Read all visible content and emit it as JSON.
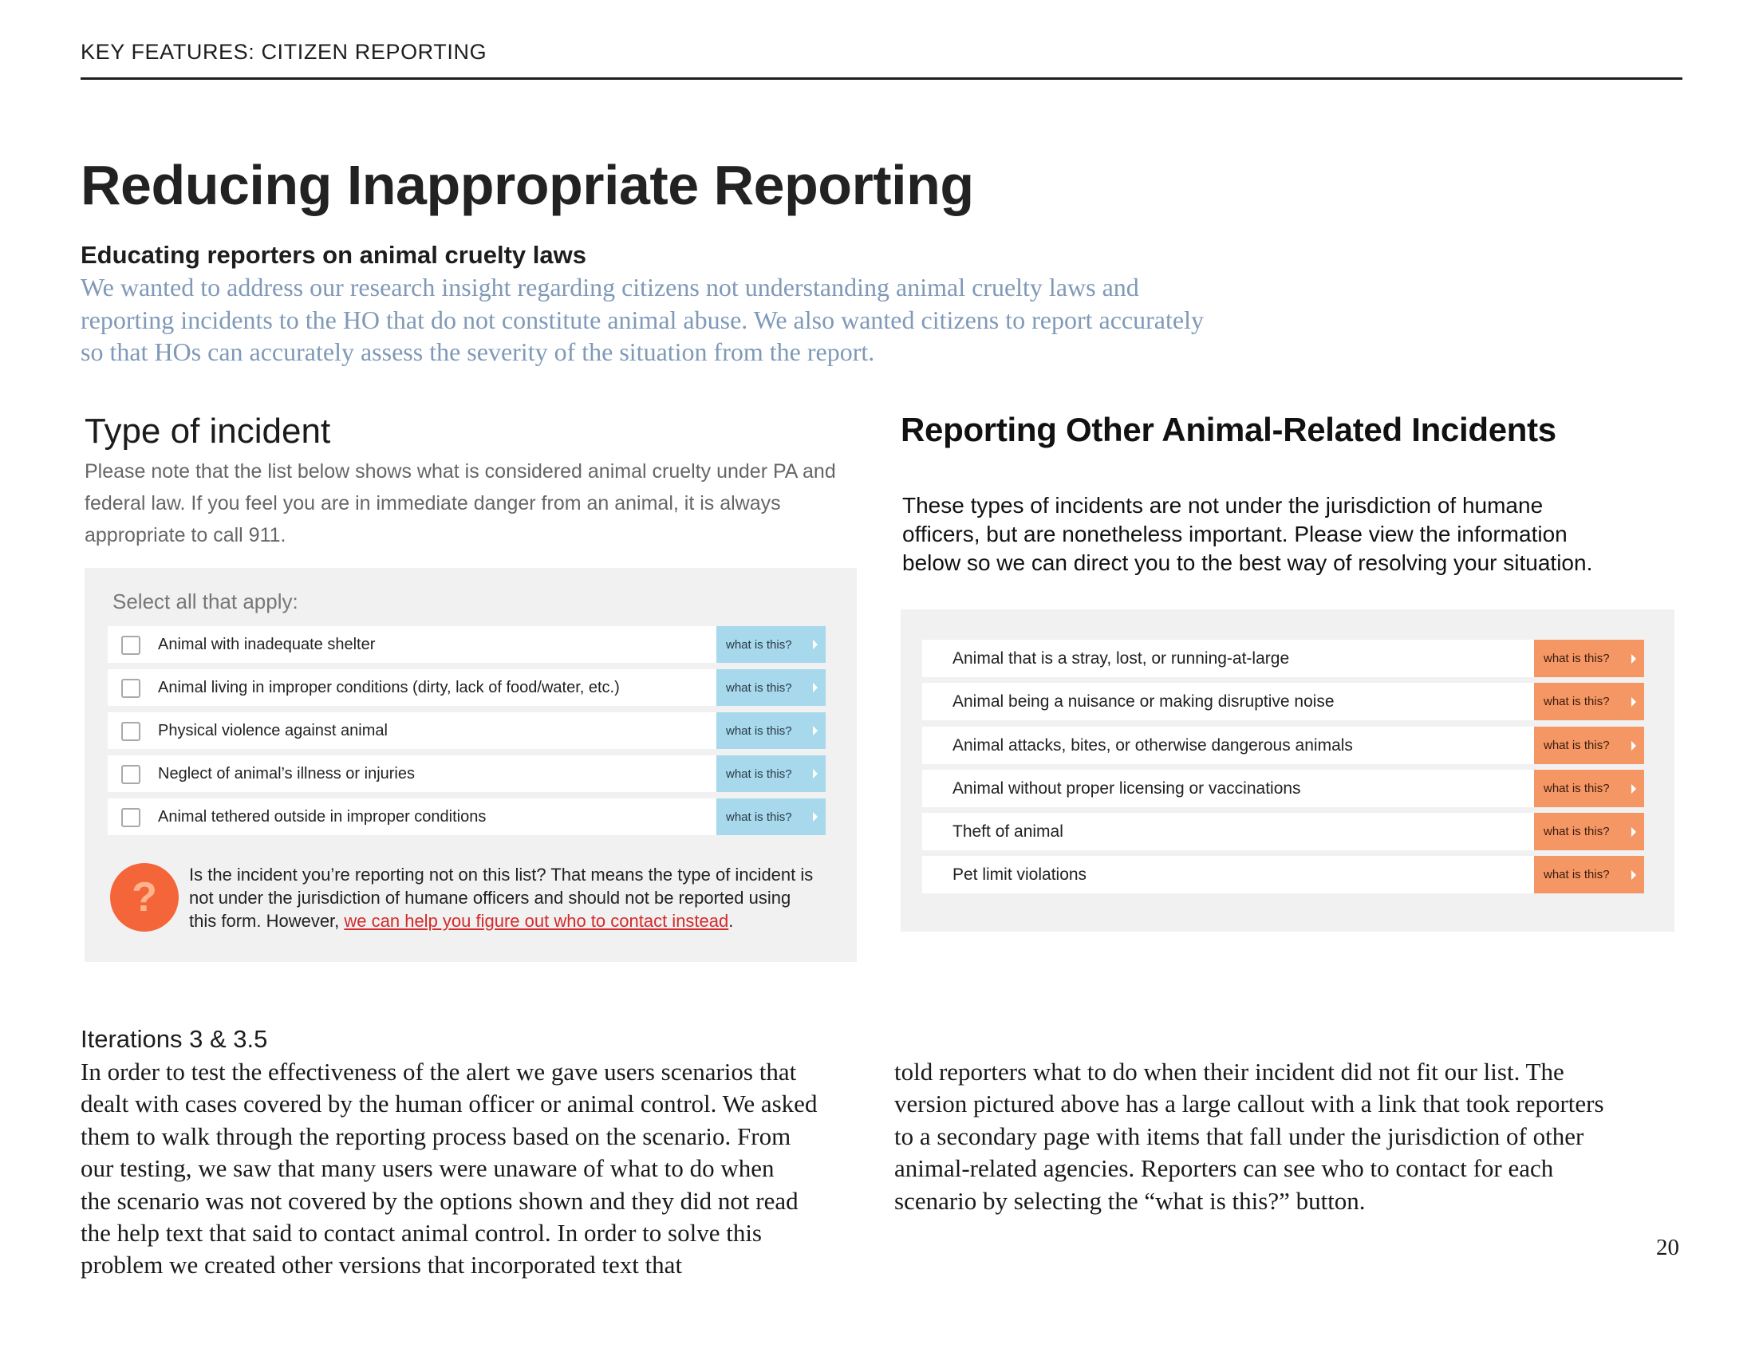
{
  "header": {
    "running_head": "KEY FEATURES: CITIZEN REPORTING"
  },
  "title": "Reducing Inappropriate Reporting",
  "subhead": "Educating reporters on animal cruelty laws",
  "intro_lines": [
    "We wanted to address our research insight regarding citizens not understanding animal cruelty laws and",
    "reporting incidents to the HO that do not constitute animal abuse. We also wanted citizens to report accurately",
    "so that HOs can accurately assess the severity of the situation from the report."
  ],
  "mock_left": {
    "title": "Type of incident",
    "note_lines": [
      "Please note that the list below shows what is considered animal cruelty under PA and",
      "federal law. If you feel you are in immediate danger from an animal, it is always",
      "appropriate to call 911."
    ],
    "select_label": "Select all that apply:",
    "options": [
      "Animal with inadequate shelter",
      "Animal living in improper conditions (dirty, lack of food/water, etc.)",
      "Physical violence against animal",
      "Neglect of animal’s illness or injuries",
      "Animal tethered outside in improper conditions"
    ],
    "button_label": "what is this?",
    "help_icon_glyph": "?",
    "callout_lines": [
      "Is the incident you’re reporting not on this list? That means the type of incident is",
      "not under the jurisdiction of humane officers and should not be reported using"
    ],
    "callout_prefix": "this form. However, ",
    "callout_link": "we can help you figure out who to contact instead",
    "callout_suffix": "."
  },
  "mock_right": {
    "title": "Reporting Other Animal-Related Incidents",
    "desc_lines": [
      "These types of incidents are not under the jurisdiction of humane",
      "officers, but are nonetheless important. Please view the information",
      "below so we can direct you to the best way of resolving your situation."
    ],
    "options": [
      "Animal that is a stray, lost, or running-at-large",
      "Animal being a nuisance or making disruptive noise",
      "Animal attacks, bites, or otherwise dangerous animals",
      "Animal without proper licensing or vaccinations",
      "Theft of animal",
      "Pet limit violations"
    ],
    "button_label": "what is this?"
  },
  "iterations": {
    "heading": "Iterations 3 & 3.5",
    "left_lines": [
      "In order to test the effectiveness of the alert we gave users scenarios that",
      "dealt with cases covered by the human officer or animal control. We asked",
      "them to walk through the reporting process based on the scenario. From",
      "our testing, we saw that many users were unaware of what to do when",
      "the scenario was not covered by the options shown and they did not read",
      "the help text that said to contact animal control. In order to solve this",
      "problem we created other versions that incorporated text that"
    ],
    "right_lines": [
      "told reporters what to do when their incident did not fit our list. The",
      "version pictured above has a large callout with a link that took reporters",
      "to a secondary page with items that fall under the jurisdiction of other",
      "animal-related agencies. Reporters can see who to contact for each",
      "scenario by selecting the “what is this?” button."
    ]
  },
  "page_number": "20",
  "colors": {
    "intro_text": "#7f99b8",
    "blue_button": "#a7d8ec",
    "orange_button": "#f59765",
    "help_icon": "#f4663a",
    "link": "#d42a2a"
  }
}
